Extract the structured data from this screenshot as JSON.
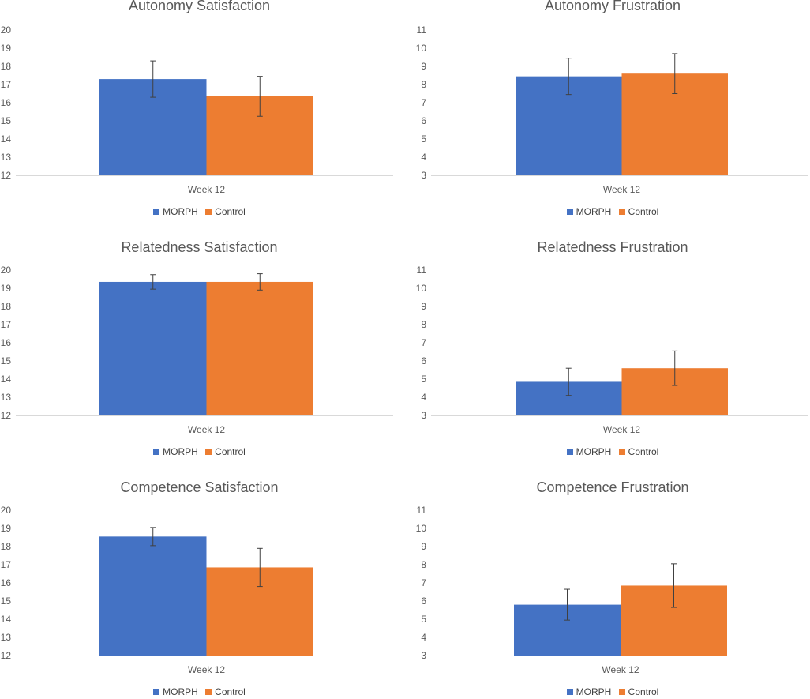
{
  "colors": {
    "morph": "#4472C4",
    "control": "#ED7D31",
    "axis": "#D9D9D9",
    "text": "#595959",
    "errorbar": "#404040"
  },
  "legend": {
    "series_a": "MORPH",
    "series_b": "Control"
  },
  "chart_data": [
    {
      "type": "bar",
      "title": "Autonomy Satisfaction",
      "categories": [
        "Week 12"
      ],
      "ylim": [
        12,
        20
      ],
      "yticks": [
        12,
        13,
        14,
        15,
        16,
        17,
        18,
        19,
        20
      ],
      "series": [
        {
          "name": "MORPH",
          "values": [
            17.3
          ],
          "error": [
            1.0
          ]
        },
        {
          "name": "Control",
          "values": [
            16.35
          ],
          "error": [
            1.1
          ]
        }
      ]
    },
    {
      "type": "bar",
      "title": "Autonomy Frustration",
      "categories": [
        "Week 12"
      ],
      "ylim": [
        3,
        11
      ],
      "yticks": [
        3,
        4,
        5,
        6,
        7,
        8,
        9,
        10,
        11
      ],
      "series": [
        {
          "name": "MORPH",
          "values": [
            8.45
          ],
          "error": [
            1.0
          ]
        },
        {
          "name": "Control",
          "values": [
            8.6
          ],
          "error": [
            1.1
          ]
        }
      ]
    },
    {
      "type": "bar",
      "title": "Relatedness Satisfaction",
      "categories": [
        "Week 12"
      ],
      "ylim": [
        12,
        20
      ],
      "yticks": [
        12,
        13,
        14,
        15,
        16,
        17,
        18,
        19,
        20
      ],
      "series": [
        {
          "name": "MORPH",
          "values": [
            19.35
          ],
          "error": [
            0.4
          ]
        },
        {
          "name": "Control",
          "values": [
            19.35
          ],
          "error": [
            0.45
          ]
        }
      ]
    },
    {
      "type": "bar",
      "title": "Relatedness Frustration",
      "categories": [
        "Week 12"
      ],
      "ylim": [
        3,
        11
      ],
      "yticks": [
        3,
        4,
        5,
        6,
        7,
        8,
        9,
        10,
        11
      ],
      "series": [
        {
          "name": "MORPH",
          "values": [
            4.85
          ],
          "error": [
            0.75
          ]
        },
        {
          "name": "Control",
          "values": [
            5.6
          ],
          "error": [
            0.95
          ]
        }
      ]
    },
    {
      "type": "bar",
      "title": "Competence Satisfaction",
      "categories": [
        "Week 12"
      ],
      "ylim": [
        12,
        20
      ],
      "yticks": [
        12,
        13,
        14,
        15,
        16,
        17,
        18,
        19,
        20
      ],
      "series": [
        {
          "name": "MORPH",
          "values": [
            18.55
          ],
          "error": [
            0.5
          ]
        },
        {
          "name": "Control",
          "values": [
            16.85
          ],
          "error": [
            1.05
          ]
        }
      ]
    },
    {
      "type": "bar",
      "title": "Competence Frustration",
      "categories": [
        "Week 12"
      ],
      "ylim": [
        3,
        11
      ],
      "yticks": [
        3,
        4,
        5,
        6,
        7,
        8,
        9,
        10,
        11
      ],
      "series": [
        {
          "name": "MORPH",
          "values": [
            5.8
          ],
          "error": [
            0.85
          ]
        },
        {
          "name": "Control",
          "values": [
            6.85
          ],
          "error": [
            1.2
          ]
        }
      ]
    }
  ]
}
